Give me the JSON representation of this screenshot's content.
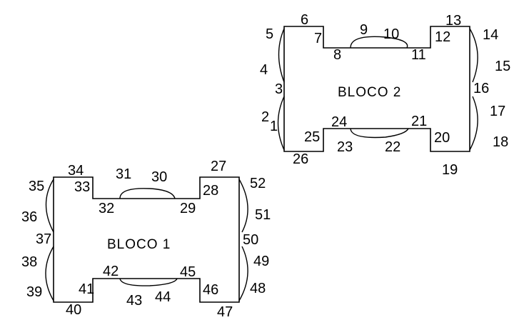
{
  "blocks": [
    {
      "name": "BLOCO 2",
      "points": [
        "1",
        "2",
        "3",
        "4",
        "5",
        "6",
        "7",
        "8",
        "9",
        "10",
        "11",
        "12",
        "13",
        "14",
        "15",
        "16",
        "17",
        "18",
        "19",
        "20",
        "21",
        "22",
        "23",
        "24",
        "25",
        "26"
      ]
    },
    {
      "name": "BLOCO 1",
      "points": [
        "27",
        "28",
        "29",
        "30",
        "31",
        "32",
        "33",
        "34",
        "35",
        "36",
        "37",
        "38",
        "39",
        "40",
        "41",
        "42",
        "43",
        "44",
        "45",
        "46",
        "47",
        "48",
        "49",
        "50",
        "51",
        "52"
      ]
    }
  ]
}
